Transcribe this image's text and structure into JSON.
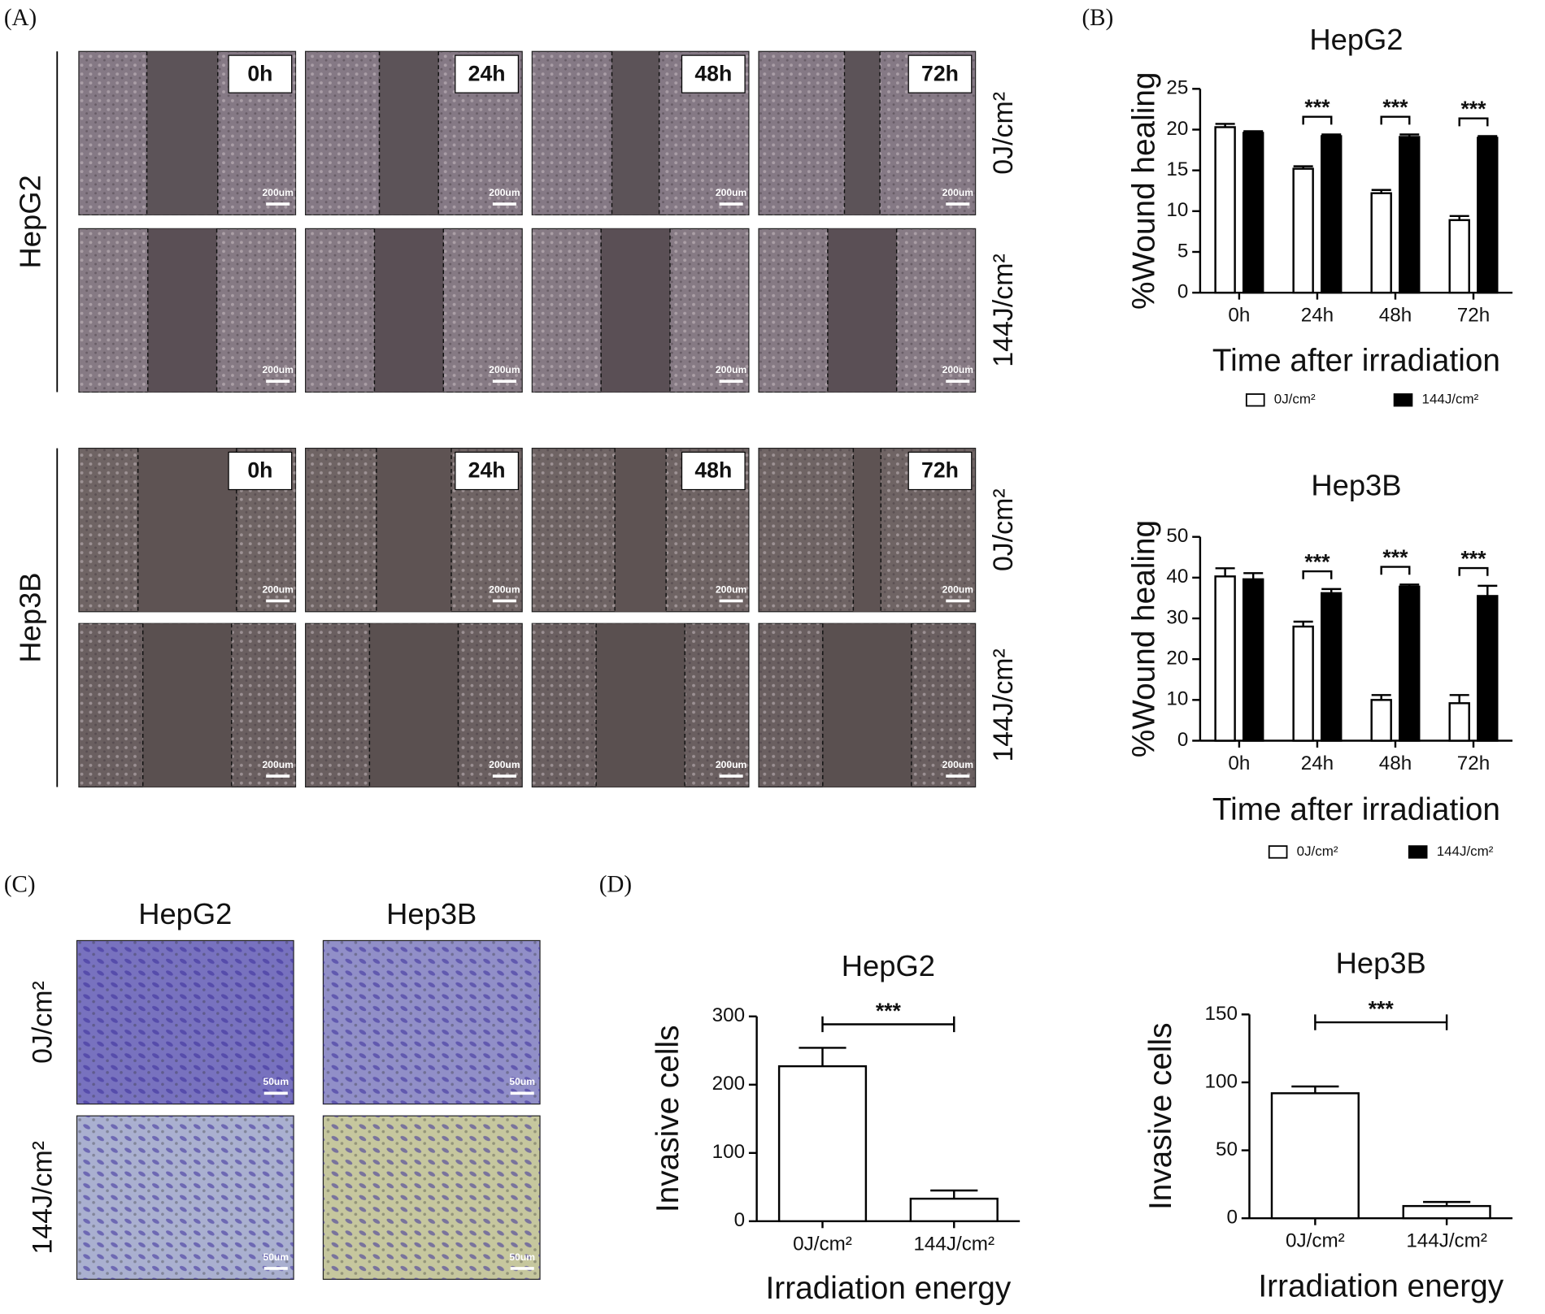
{
  "panels": {
    "A": {
      "label": "(A)",
      "cell_lines": [
        "HepG2",
        "Hep3B"
      ],
      "times": [
        "0h",
        "24h",
        "48h",
        "72h"
      ],
      "doses": [
        "0J/cm²",
        "144J/cm²"
      ],
      "scale_bar": "200um"
    },
    "B": {
      "label": "(B)"
    },
    "C": {
      "label": "(C)",
      "cell_lines": [
        "HepG2",
        "Hep3B"
      ],
      "doses": [
        "0J/cm²",
        "144J/cm²"
      ],
      "scale_bar": "50um"
    },
    "D": {
      "label": "(D)"
    }
  },
  "chart_data": [
    {
      "type": "bar",
      "title": "HepG2",
      "x_label": "Time after irradiation",
      "y_label": "%Wound healing",
      "categories": [
        "0h",
        "24h",
        "48h",
        "72h"
      ],
      "series": [
        {
          "name": "0J/cm²",
          "color": "#ffffff",
          "values": [
            20.3,
            15.2,
            12.2,
            8.9
          ],
          "errors": [
            0.4,
            0.3,
            0.4,
            0.5
          ]
        },
        {
          "name": "144J/cm²",
          "color": "#000000",
          "values": [
            19.6,
            19.2,
            19.1,
            19.0
          ],
          "errors": [
            0.2,
            0.2,
            0.3,
            0.2
          ]
        }
      ],
      "ylim": [
        0,
        25
      ],
      "yticks": [
        0,
        5,
        10,
        15,
        20,
        25
      ],
      "significance": [
        null,
        "***",
        "***",
        "***"
      ],
      "legend": "bottom"
    },
    {
      "type": "bar",
      "title": "Hep3B",
      "x_label": "Time after irradiation",
      "y_label": "%Wound healing",
      "categories": [
        "0h",
        "24h",
        "48h",
        "72h"
      ],
      "series": [
        {
          "name": "0J/cm²",
          "color": "#ffffff",
          "values": [
            40.3,
            28.0,
            10.0,
            9.2
          ],
          "errors": [
            2.0,
            1.2,
            1.2,
            2.0
          ]
        },
        {
          "name": "144J/cm²",
          "color": "#000000",
          "values": [
            39.6,
            36.2,
            37.8,
            35.5
          ],
          "errors": [
            1.5,
            1.0,
            0.5,
            2.5
          ]
        }
      ],
      "ylim": [
        0,
        50
      ],
      "yticks": [
        0,
        10,
        20,
        30,
        40,
        50
      ],
      "significance": [
        null,
        "***",
        "***",
        "***"
      ],
      "legend": "bottom"
    },
    {
      "type": "bar",
      "title": "HepG2",
      "x_label": "Irradiation energy",
      "y_label": "Invasive cells",
      "categories": [
        "0J/cm²",
        "144J/cm²"
      ],
      "series": [
        {
          "color": "#ffffff",
          "values": [
            227,
            33
          ],
          "errors": [
            27,
            12
          ]
        }
      ],
      "ylim": [
        0,
        300
      ],
      "yticks": [
        0,
        100,
        200,
        300
      ],
      "significance": "***"
    },
    {
      "type": "bar",
      "title": "Hep3B",
      "x_label": "Irradiation energy",
      "y_label": "Invasive cells",
      "categories": [
        "0J/cm²",
        "144J/cm²"
      ],
      "series": [
        {
          "color": "#ffffff",
          "values": [
            92,
            9
          ],
          "errors": [
            5,
            3
          ]
        }
      ],
      "ylim": [
        0,
        150
      ],
      "yticks": [
        0,
        50,
        100,
        150
      ],
      "significance": "***"
    }
  ]
}
